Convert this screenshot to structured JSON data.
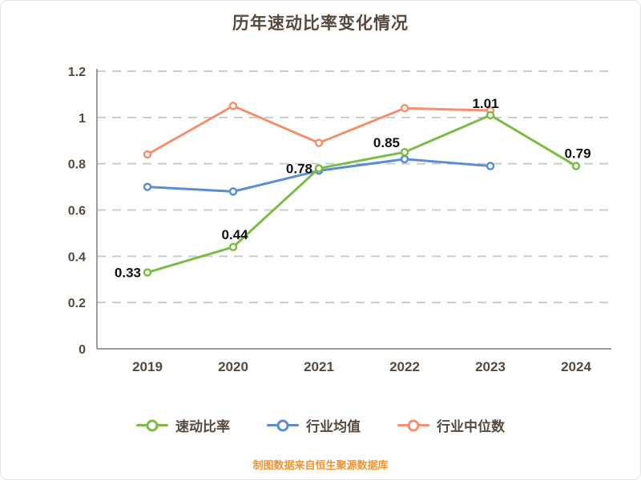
{
  "caption": "制图数据来自恒生聚源数据库",
  "theme": {
    "text_color": "#57493e",
    "caption_color": "#f0952f",
    "grid_color": "#cccccc",
    "axis_color": "#a39a8e",
    "point_label_color": "#111111"
  },
  "chart_data": {
    "type": "line",
    "title": "历年速动比率变化情况",
    "categories": [
      "2019",
      "2020",
      "2021",
      "2022",
      "2023",
      "2024"
    ],
    "series": [
      {
        "name": "速动比率",
        "color": "#7dbb48",
        "values": [
          0.33,
          0.44,
          0.78,
          0.85,
          1.01,
          0.79
        ],
        "show_point_labels": true,
        "point_labels": [
          "0.33",
          "0.44",
          "0.78",
          "0.85",
          "1.01",
          "0.79"
        ]
      },
      {
        "name": "行业均值",
        "color": "#5b8dd3",
        "values": [
          0.7,
          0.68,
          0.77,
          0.82,
          0.79,
          null
        ],
        "show_point_labels": false
      },
      {
        "name": "行业中位数",
        "color": "#f4906f",
        "values": [
          0.84,
          1.05,
          0.89,
          1.04,
          1.03,
          null
        ],
        "show_point_labels": false
      }
    ],
    "ylim": [
      0,
      1.2
    ],
    "yticks": [
      0,
      0.2,
      0.4,
      0.6,
      0.8,
      1,
      1.2
    ],
    "grid": "horizontal-dashed",
    "legend_position": "bottom",
    "marker": "hollow-circle"
  }
}
